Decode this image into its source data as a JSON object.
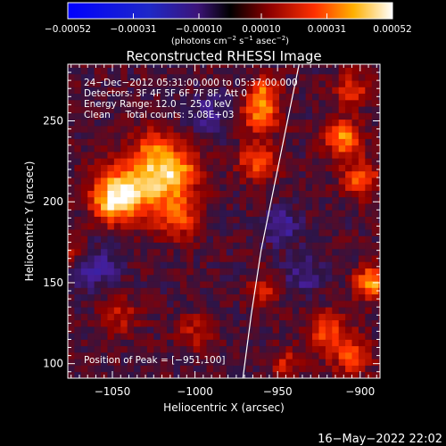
{
  "chart_data": {
    "type": "heatmap",
    "title": "Reconstructed RHESSI Image",
    "xlabel": "Heliocentric X (arcsec)",
    "ylabel": "Heliocentric Y (arcsec)",
    "xlim": [
      -1077,
      -888
    ],
    "ylim": [
      91,
      285
    ],
    "x_ticks": [
      -1050,
      -1000,
      -950,
      -900
    ],
    "x_tick_labels": [
      "−1050",
      "−1000",
      "−950",
      "−900"
    ],
    "y_ticks": [
      100,
      150,
      200,
      250
    ],
    "y_tick_labels": [
      "100",
      "150",
      "200",
      "250"
    ],
    "colorbar": {
      "min": -0.00052,
      "max": 0.00052,
      "ticks": [
        -0.00052,
        -0.00031,
        -0.0001,
        0.0001,
        0.00031,
        0.00052
      ],
      "tick_labels": [
        "−0.00052",
        "−0.00031",
        "−0.00010",
        "0.00010",
        "0.00031",
        "0.00052"
      ],
      "units_prefix": "(photons cm",
      "units_sup1": "−2",
      "units_mid1": " s",
      "units_sup2": "−1",
      "units_mid2": " asec",
      "units_sup3": "−2",
      "units_suffix": ")"
    },
    "annotations": [
      "24−Dec−2012 05:31:00.000 to 05:37:00.000",
      "Detectors: 3F 4F 5F 6F 7F 8F, Att 0",
      "Energy Range: 12.0 − 25.0 keV",
      "Clean     Total counts: 5.08E+03"
    ],
    "peak_label": "Position of Peak = [−951,100]",
    "grid": false,
    "limb_curve": {
      "x": [
        -937,
        -944,
        -952,
        -960,
        -966,
        -971
      ],
      "y": [
        285,
        250,
        210,
        170,
        130,
        91
      ]
    },
    "hotspots": [
      {
        "x": -1037,
        "y": 210,
        "intensity": 0.00034,
        "sigma": 14
      },
      {
        "x": -1013,
        "y": 218,
        "intensity": 0.00036,
        "sigma": 11
      },
      {
        "x": -1050,
        "y": 200,
        "intensity": 0.0003,
        "sigma": 9
      },
      {
        "x": -1010,
        "y": 190,
        "intensity": 0.00024,
        "sigma": 9
      },
      {
        "x": -1025,
        "y": 235,
        "intensity": 0.00018,
        "sigma": 8
      },
      {
        "x": -960,
        "y": 255,
        "intensity": 0.00032,
        "sigma": 8
      },
      {
        "x": -962,
        "y": 225,
        "intensity": 0.00026,
        "sigma": 8
      },
      {
        "x": -958,
        "y": 270,
        "intensity": 0.00022,
        "sigma": 6
      },
      {
        "x": -911,
        "y": 240,
        "intensity": 0.00032,
        "sigma": 8
      },
      {
        "x": -900,
        "y": 215,
        "intensity": 0.00026,
        "sigma": 8
      },
      {
        "x": -905,
        "y": 270,
        "intensity": 0.00022,
        "sigma": 7
      },
      {
        "x": -893,
        "y": 150,
        "intensity": 0.00036,
        "sigma": 7
      },
      {
        "x": -920,
        "y": 120,
        "intensity": 0.00022,
        "sigma": 9
      },
      {
        "x": -905,
        "y": 105,
        "intensity": 0.00024,
        "sigma": 8
      },
      {
        "x": -958,
        "y": 145,
        "intensity": 0.00016,
        "sigma": 7
      },
      {
        "x": -945,
        "y": 100,
        "intensity": 0.00016,
        "sigma": 7
      },
      {
        "x": -1045,
        "y": 130,
        "intensity": 0.00016,
        "sigma": 8
      },
      {
        "x": -1000,
        "y": 120,
        "intensity": 0.00014,
        "sigma": 8
      },
      {
        "x": -1075,
        "y": 170,
        "intensity": 0.00014,
        "sigma": 6
      }
    ],
    "coldspots": [
      {
        "x": -1060,
        "y": 160,
        "intensity": -0.00014,
        "sigma": 10
      },
      {
        "x": -990,
        "y": 255,
        "intensity": -0.00012,
        "sigma": 9
      },
      {
        "x": -947,
        "y": 185,
        "intensity": -0.00016,
        "sigma": 8
      },
      {
        "x": -935,
        "y": 155,
        "intensity": -0.00012,
        "sigma": 8
      }
    ]
  },
  "footer": {
    "timestamp": "16−May−2022 22:02"
  }
}
